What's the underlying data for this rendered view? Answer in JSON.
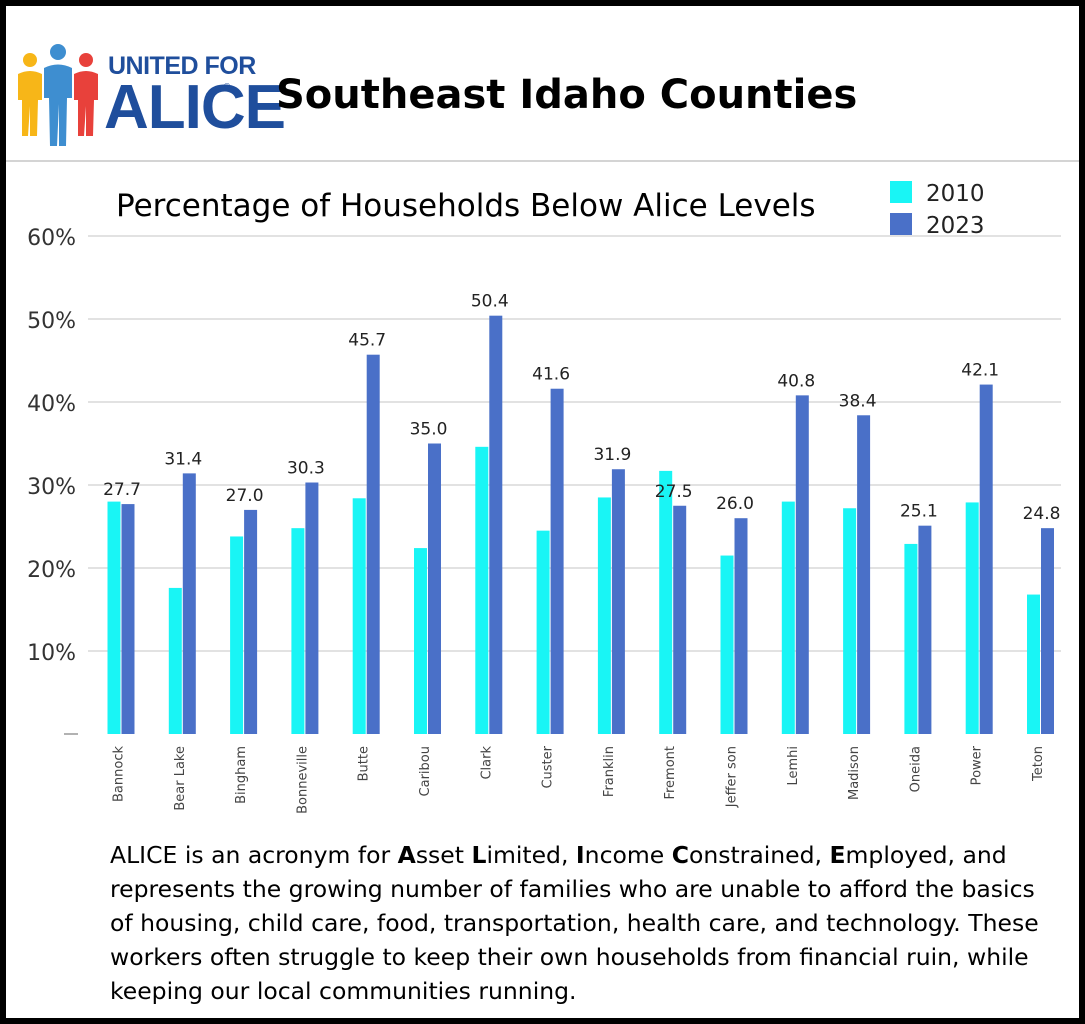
{
  "logo": {
    "line1": "UNITED FOR",
    "line2": "ALICE",
    "registered": "®"
  },
  "header": {
    "title": "Southeast Idaho Counties"
  },
  "colors": {
    "series_2010": "#19f5f5",
    "series_2023": "#4a70c8",
    "grid": "#d9d9d9",
    "brand_blue": "#1f4e9c"
  },
  "chart_data": {
    "type": "bar",
    "title": "Percentage of Households Below Alice Levels",
    "categories": [
      "Bannock",
      "Bear Lake",
      "Bingham",
      "Bonneville",
      "Butte",
      "Caribou",
      "Clark",
      "Custer",
      "Franklin",
      "Fremont",
      "Jefferson",
      "Lemhi",
      "Madison",
      "Oneida",
      "Power",
      "Teton"
    ],
    "category_labels": [
      "Bannock",
      "Bear Lake",
      "Bingham",
      "Bonneville",
      "Butte",
      "Caribou",
      "Clark",
      "Custer",
      "Franklin",
      "Fremont",
      "Jeffer son",
      "Lemhi",
      "Madison",
      "Oneida",
      "Power",
      "Teton"
    ],
    "series": [
      {
        "name": "2010",
        "values": [
          28.0,
          17.6,
          23.8,
          24.8,
          28.4,
          22.4,
          34.6,
          24.5,
          28.5,
          31.7,
          21.5,
          28.0,
          27.2,
          22.9,
          27.9,
          16.8
        ]
      },
      {
        "name": "2023",
        "values": [
          27.7,
          31.4,
          27.0,
          30.3,
          45.7,
          35.0,
          50.4,
          41.6,
          31.9,
          27.5,
          26.0,
          40.8,
          38.4,
          25.1,
          42.1,
          24.8
        ]
      }
    ],
    "data_labels": [
      "27.7",
      "31.4",
      "27.0",
      "30.3",
      "45.7",
      "35.0",
      "50.4",
      "41.6",
      "31.9",
      "27.5",
      "26.0",
      "40.8",
      "38.4",
      "25.1",
      "42.1",
      "24.8"
    ],
    "ylim": [
      0,
      60
    ],
    "yticks": [
      10,
      20,
      30,
      40,
      50,
      60
    ],
    "ytick_labels": [
      "10%",
      "20%",
      "30%",
      "40%",
      "50%",
      "60%"
    ],
    "legend": [
      "2010",
      "2023"
    ],
    "legend_position": "top-right",
    "grid": true,
    "xlabel": "",
    "ylabel": ""
  },
  "footnote": {
    "intro": "ALICE is an acronym for ",
    "a_cap": "A",
    "a_rest": "sset ",
    "l_cap": "L",
    "l_rest": "imited, ",
    "i_cap": "I",
    "i_rest": "ncome ",
    "c_cap": "C",
    "c_rest": "onstrained, ",
    "e_cap": "E",
    "e_rest": "mployed,",
    "body": " and represents the growing number of families who are unable to afford the basics of housing, child care, food, transportation, health care, and technology. These workers often struggle to keep their own households from financial ruin, while keeping our local communities running."
  }
}
